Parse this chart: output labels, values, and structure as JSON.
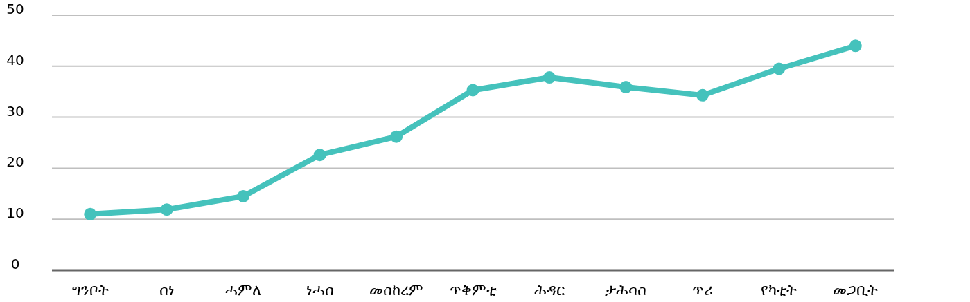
{
  "chart_data": {
    "type": "line",
    "categories": [
      "ግንቦት",
      "ሰነ",
      "ሓምለ",
      "ነሓሰ",
      "መስከረም",
      "ጥቅምቲ",
      "ሕዳር",
      "ታሕሳስ",
      "ጥሪ",
      "የካቲት",
      "መጋቢት"
    ],
    "series": [
      {
        "color": "#45c2bc",
        "values": [
          11.0,
          11.9,
          14.5,
          22.6,
          26.2,
          35.3,
          37.8,
          35.9,
          34.3,
          39.5,
          44.0
        ]
      }
    ],
    "ylim": [
      0,
      50
    ],
    "yticks": [
      0,
      10,
      20,
      30,
      40,
      50
    ],
    "grid": "y",
    "marker": "circle",
    "line_style": "solid"
  }
}
